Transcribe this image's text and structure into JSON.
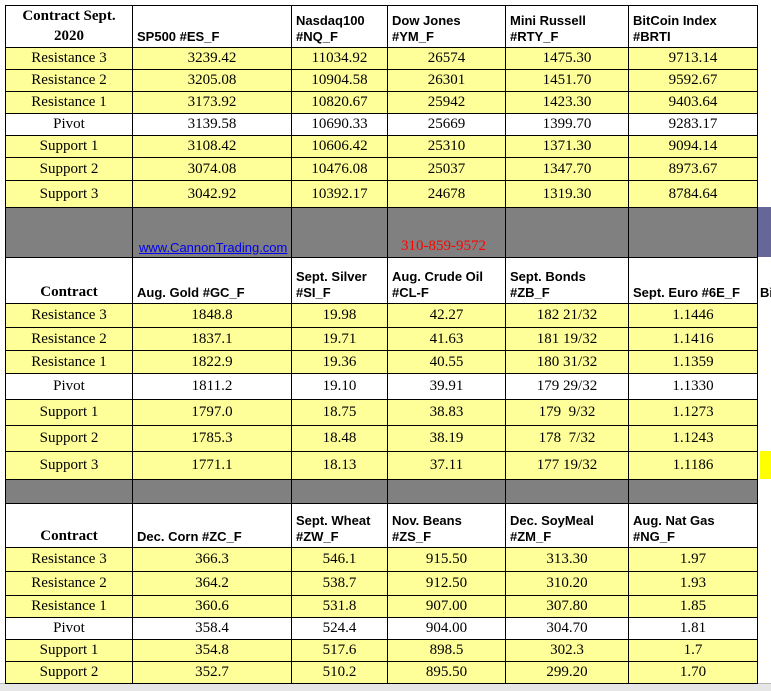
{
  "sections": [
    {
      "header": [
        "Contract Sept.\n2020",
        "SP500 #ES_F",
        "Nasdaq100\n#NQ_F",
        "Dow Jones\n#YM_F",
        "Mini Russell\n#RTY_F",
        "BitCoin Index\n#BRTI"
      ],
      "rows": [
        [
          "Resistance 3",
          "3239.42",
          "11034.92",
          "26574",
          "1475.30",
          "9713.14"
        ],
        [
          "Resistance 2",
          "3205.08",
          "10904.58",
          "26301",
          "1451.70",
          "9592.67"
        ],
        [
          "Resistance 1",
          "3173.92",
          "10820.67",
          "25942",
          "1423.30",
          "9403.64"
        ],
        [
          "Pivot",
          "3139.58",
          "10690.33",
          "25669",
          "1399.70",
          "9283.17"
        ],
        [
          "Support 1",
          "3108.42",
          "10606.42",
          "25310",
          "1371.30",
          "9094.14"
        ],
        [
          "Support 2",
          "3074.08",
          "10476.08",
          "25037",
          "1347.70",
          "8973.67"
        ],
        [
          "Support 3",
          "3042.92",
          "10392.17",
          "24678",
          "1319.30",
          "8784.64"
        ]
      ]
    },
    {
      "header": [
        "Contract",
        "Aug. Gold #GC_F",
        "Sept. Silver\n#SI_F",
        "Aug. Crude Oil\n#CL-F",
        "Sept. Bonds\n#ZB_F",
        "Sept.  Euro #6E_F"
      ],
      "rows": [
        [
          "Resistance 3",
          "1848.8",
          "19.98",
          "42.27",
          "182 21/32",
          "1.1446"
        ],
        [
          "Resistance 2",
          "1837.1",
          "19.71",
          "41.63",
          "181 19/32",
          "1.1416"
        ],
        [
          "Resistance 1",
          "1822.9",
          "19.36",
          "40.55",
          "180 31/32",
          "1.1359"
        ],
        [
          "Pivot",
          "1811.2",
          "19.10",
          "39.91",
          "179 29/32",
          "1.1330"
        ],
        [
          "Support 1",
          "1797.0",
          "18.75",
          "38.83",
          "179  9/32",
          "1.1273"
        ],
        [
          "Support 2",
          "1785.3",
          "18.48",
          "38.19",
          "178  7/32",
          "1.1243"
        ],
        [
          "Support 3",
          "1771.1",
          "18.13",
          "37.11",
          "177 19/32",
          "1.1186"
        ]
      ]
    },
    {
      "header": [
        "Contract",
        "Dec. Corn #ZC_F",
        "Sept.  Wheat\n#ZW_F",
        "Nov.  Beans\n#ZS_F",
        "Dec. SoyMeal\n#ZM_F",
        "Aug. Nat Gas\n#NG_F"
      ],
      "rows": [
        [
          "Resistance 3",
          "366.3",
          "546.1",
          "915.50",
          "313.30",
          "1.97"
        ],
        [
          "Resistance 2",
          "364.2",
          "538.7",
          "912.50",
          "310.20",
          "1.93"
        ],
        [
          "Resistance 1",
          "360.6",
          "531.8",
          "907.00",
          "307.80",
          "1.85"
        ],
        [
          "Pivot",
          "358.4",
          "524.4",
          "904.00",
          "304.70",
          "1.81"
        ],
        [
          "Support 1",
          "354.8",
          "517.6",
          "898.5",
          "302.3",
          "1.7"
        ],
        [
          "Support 2",
          "352.7",
          "510.2",
          "895.50",
          "299.20",
          "1.70"
        ]
      ]
    }
  ],
  "banner": {
    "website": "www.CannonTrading.com",
    "phone": "310-859-9572"
  },
  "overflow_text": "Bi"
}
